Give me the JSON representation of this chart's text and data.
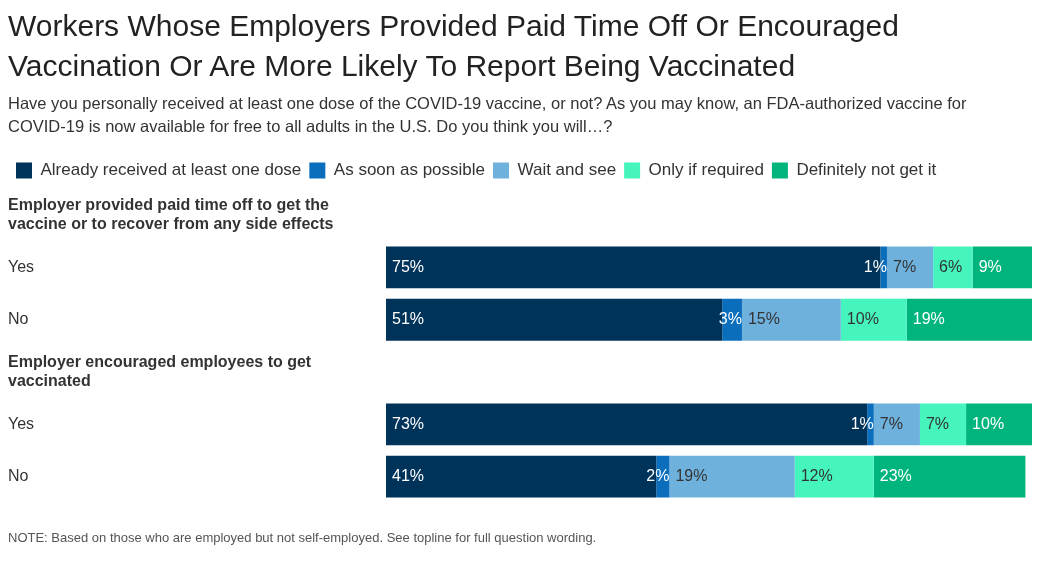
{
  "chart_data": {
    "type": "bar",
    "orientation": "horizontal",
    "stacked": true,
    "legend": "top left",
    "title": "Workers Whose Employers Provided Paid Time Off Or Encouraged Vaccination Or Are More Likely To Report Being Vaccinated",
    "subtitle": "Have you personally received at least one dose of the COVID-19 vaccine, or not? As you may know, an FDA-authorized vaccine for COVID-19 is now available for free to all adults in the U.S. Do you think you will…?",
    "categories": [
      "Employer provided paid time off to get the vaccine or to recover from any side effects",
      "Yes",
      "No",
      "Employer encouraged employees to get vaccinated",
      "Yes",
      "No"
    ],
    "series": [
      {
        "name": "Already received at least one dose",
        "color": "#00335a",
        "values": [
          null,
          75,
          51,
          null,
          73,
          41
        ],
        "value_labels": [
          null,
          "75%",
          "51%",
          null,
          "73%",
          "41%"
        ]
      },
      {
        "name": "As soon as possible",
        "color": "#0a6ebd",
        "values": [
          null,
          1,
          3,
          null,
          1,
          2
        ],
        "value_labels": [
          null,
          "1%",
          "3%",
          null,
          "1%",
          "2%"
        ]
      },
      {
        "name": "Wait and see",
        "color": "#6eb1dc",
        "values": [
          null,
          7,
          15,
          null,
          7,
          19
        ],
        "value_labels": [
          null,
          "7%",
          "15%",
          null,
          "7%",
          "19%"
        ]
      },
      {
        "name": "Only if required",
        "color": "#45f5bd",
        "values": [
          null,
          6,
          10,
          null,
          7,
          12
        ],
        "value_labels": [
          null,
          "6%",
          "10%",
          null,
          "7%",
          "12%"
        ]
      },
      {
        "name": "Definitely not get it",
        "color": "#00b47d",
        "values": [
          null,
          9,
          19,
          null,
          10,
          23
        ],
        "value_labels": [
          null,
          "9%",
          "19%",
          null,
          "10%",
          "23%"
        ]
      }
    ],
    "annotations": [
      "NOTE: Based on those who are employed but not self-employed. See topline for full question wording."
    ]
  }
}
